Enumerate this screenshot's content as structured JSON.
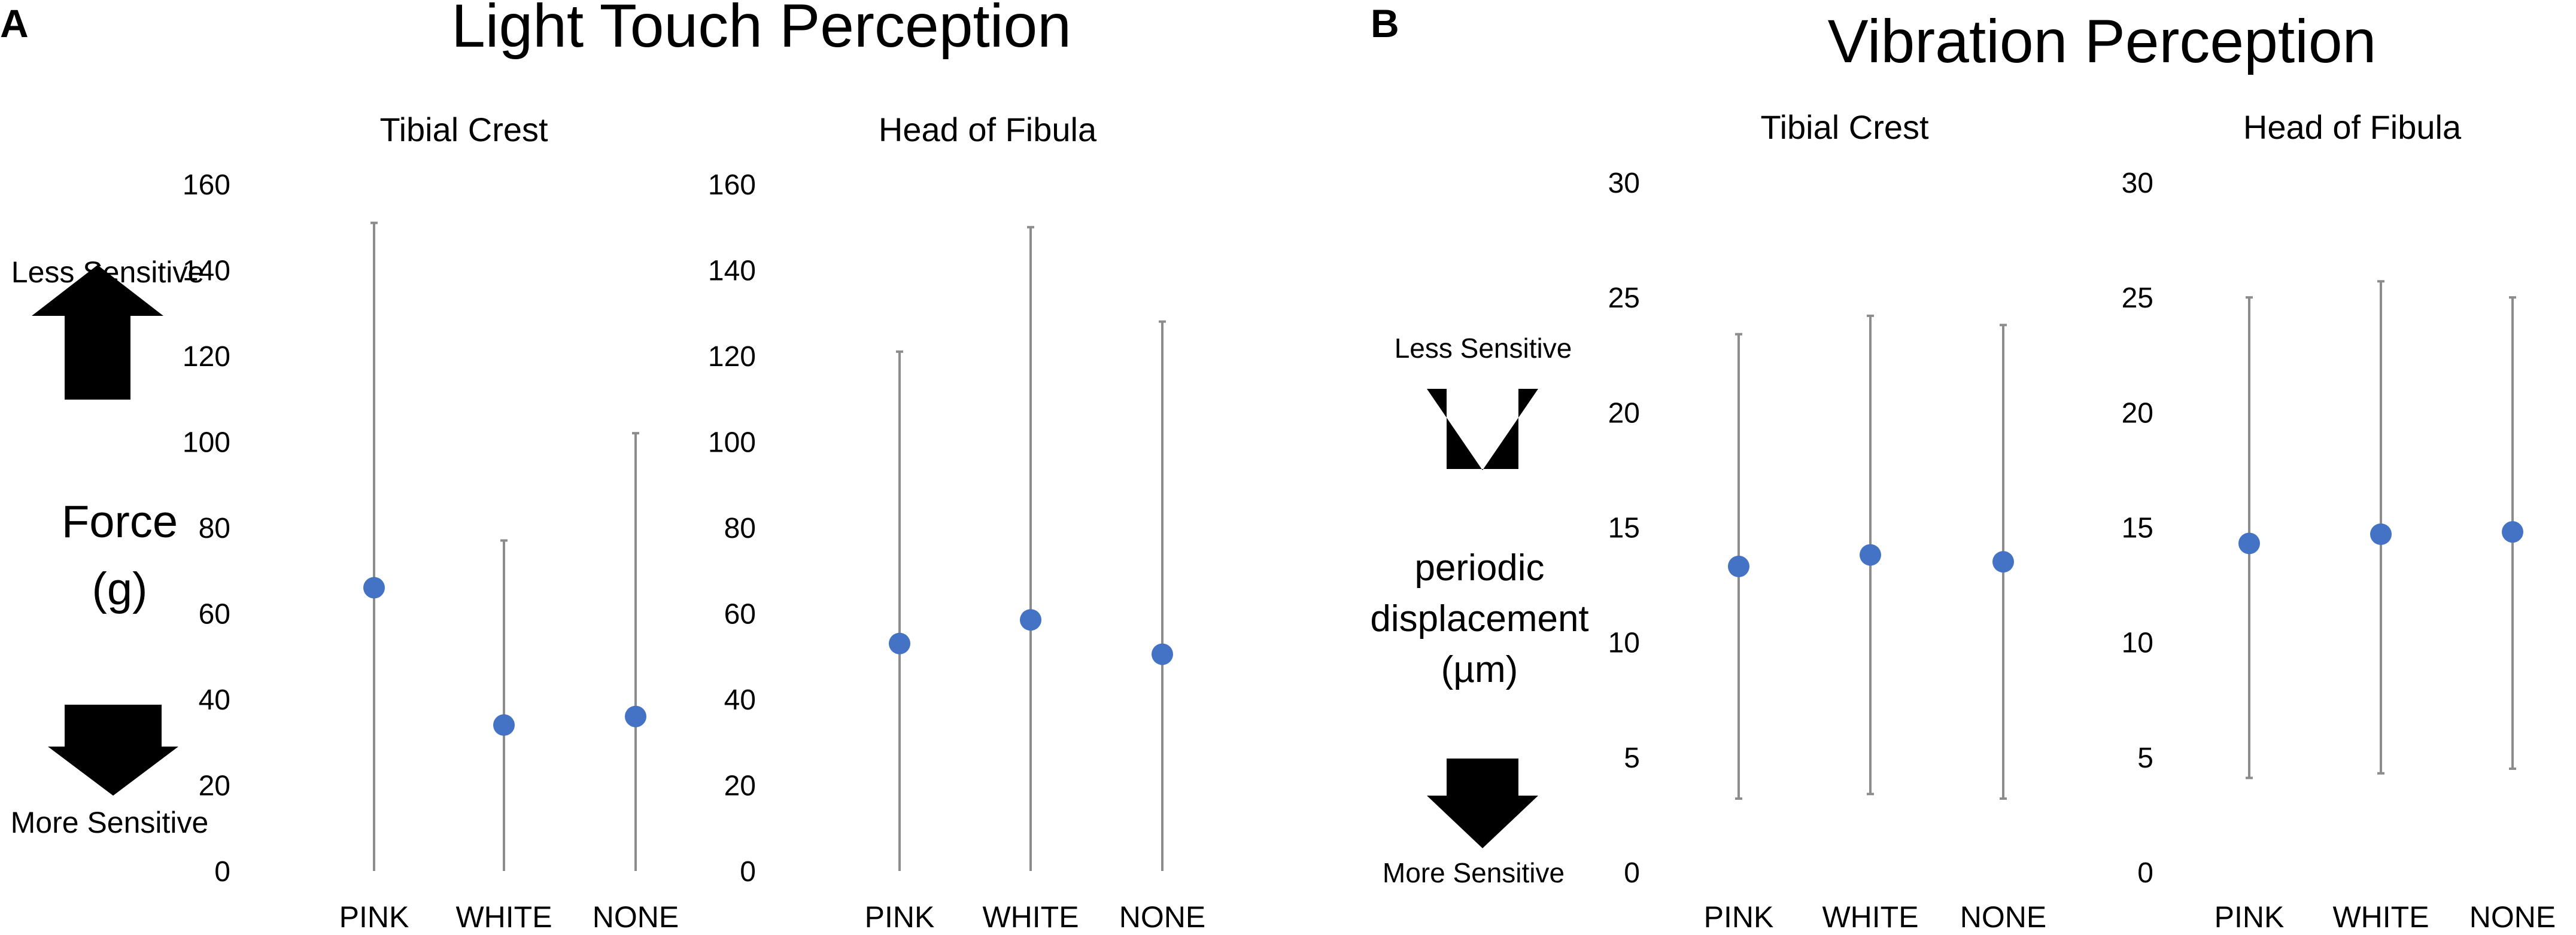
{
  "panels": [
    {
      "letter": "A",
      "title": "Light Touch Perception",
      "quantity_label": [
        "Force",
        "(g)"
      ],
      "less_label": "Less Sensitive",
      "more_label": "More Sensitive"
    },
    {
      "letter": "B",
      "title": "Vibration Perception",
      "quantity_label": [
        "periodic",
        "displacement",
        "(µm)"
      ],
      "less_label": "Less Sensitive",
      "more_label": "More Sensitive"
    }
  ],
  "colors": {
    "point": "#4472C4",
    "error_bar": "#8C8C8C",
    "text": "#000000"
  },
  "icons": {
    "up": "up-arrow-icon",
    "down": "down-arrow-icon"
  },
  "chart_data": [
    {
      "type": "scatter",
      "panel": "A",
      "title": "Tibial Crest",
      "categories": [
        "PINK",
        "WHITE",
        "NONE"
      ],
      "values": [
        66,
        34,
        36
      ],
      "error_high": [
        151,
        77,
        102
      ],
      "error_low": [
        0,
        0,
        0
      ],
      "ylim": [
        0,
        160
      ],
      "yticks": [
        0,
        20,
        40,
        60,
        80,
        100,
        120,
        140,
        160
      ],
      "xlabel": "",
      "ylabel": "Force (g)"
    },
    {
      "type": "scatter",
      "panel": "A",
      "title": "Head of Fibula",
      "categories": [
        "PINK",
        "WHITE",
        "NONE"
      ],
      "values": [
        53,
        58.5,
        50.5
      ],
      "error_high": [
        121,
        150,
        128
      ],
      "error_low": [
        0,
        0,
        0
      ],
      "ylim": [
        0,
        160
      ],
      "yticks": [
        0,
        20,
        40,
        60,
        80,
        100,
        120,
        140,
        160
      ],
      "xlabel": "",
      "ylabel": "Force (g)"
    },
    {
      "type": "scatter",
      "panel": "B",
      "title": "Tibial Crest",
      "categories": [
        "PINK",
        "WHITE",
        "NONE"
      ],
      "values": [
        13.3,
        13.8,
        13.5
      ],
      "error_high": [
        23.4,
        24.2,
        23.8
      ],
      "error_low": [
        3.2,
        3.4,
        3.2
      ],
      "ylim": [
        0,
        30
      ],
      "yticks": [
        0,
        5,
        10,
        15,
        20,
        25,
        30
      ],
      "xlabel": "",
      "ylabel": "periodic displacement (µm)"
    },
    {
      "type": "scatter",
      "panel": "B",
      "title": "Head of Fibula",
      "categories": [
        "PINK",
        "WHITE",
        "NONE"
      ],
      "values": [
        14.3,
        14.7,
        14.8
      ],
      "error_high": [
        25.0,
        25.7,
        25.0
      ],
      "error_low": [
        4.1,
        4.3,
        4.5
      ],
      "ylim": [
        0,
        30
      ],
      "yticks": [
        0,
        5,
        10,
        15,
        20,
        25,
        30
      ],
      "xlabel": "",
      "ylabel": "periodic displacement (µm)"
    }
  ]
}
